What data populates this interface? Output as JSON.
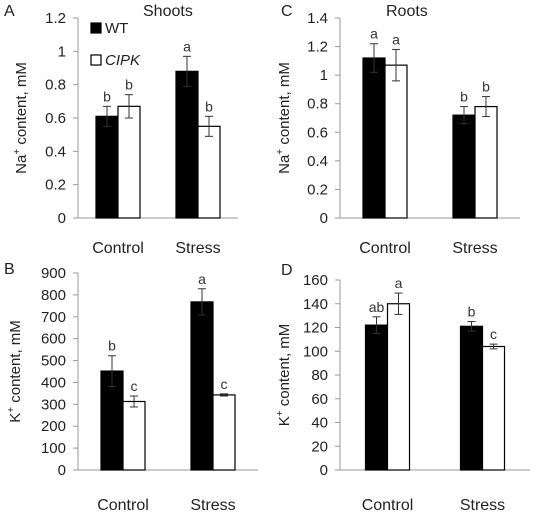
{
  "figure": {
    "legend": [
      {
        "label": "WT",
        "italic": false,
        "fill": "#000000"
      },
      {
        "label": "CIPK",
        "italic": true,
        "fill": "#ffffff"
      }
    ]
  },
  "chart_data": [
    {
      "panel": "A",
      "title": "Shoots",
      "type": "bar",
      "ylabel_main": "Na",
      "ylabel_sup": "+",
      "ylabel_rest": " content, mM",
      "categories": [
        "Control",
        "Stress"
      ],
      "ylim": [
        0,
        1.2
      ],
      "yticks": [
        "0",
        "0.2",
        "0.4",
        "0.6",
        "0.8",
        "1",
        "1.2"
      ],
      "legend_placement": "top-left",
      "series": [
        {
          "name": "WT",
          "fill": "#000000",
          "values": [
            0.61,
            0.88
          ],
          "errors": [
            0.06,
            0.09
          ],
          "letters": [
            "b",
            "a"
          ]
        },
        {
          "name": "CIPK",
          "fill": "#ffffff",
          "values": [
            0.67,
            0.55
          ],
          "errors": [
            0.07,
            0.06
          ],
          "letters": [
            "b",
            "b"
          ]
        }
      ]
    },
    {
      "panel": "C",
      "title": "Roots",
      "type": "bar",
      "ylabel_main": "Na",
      "ylabel_sup": "+",
      "ylabel_rest": " content, mM",
      "categories": [
        "Control",
        "Stress"
      ],
      "ylim": [
        0,
        1.4
      ],
      "yticks": [
        "0",
        "0.2",
        "0.4",
        "0.6",
        "0.8",
        "1",
        "1.2",
        "1.4"
      ],
      "series": [
        {
          "name": "WT",
          "fill": "#000000",
          "values": [
            1.12,
            0.72
          ],
          "errors": [
            0.1,
            0.06
          ],
          "letters": [
            "a",
            "b"
          ]
        },
        {
          "name": "CIPK",
          "fill": "#ffffff",
          "values": [
            1.07,
            0.78
          ],
          "errors": [
            0.11,
            0.07
          ],
          "letters": [
            "a",
            "b"
          ]
        }
      ]
    },
    {
      "panel": "B",
      "title": "",
      "type": "bar",
      "ylabel_main": "K",
      "ylabel_sup": "+",
      "ylabel_rest": " content, mM",
      "categories": [
        "Control",
        "Stress"
      ],
      "ylim": [
        0,
        900
      ],
      "yticks": [
        "0",
        "100",
        "200",
        "300",
        "400",
        "500",
        "600",
        "700",
        "800",
        "900"
      ],
      "series": [
        {
          "name": "WT",
          "fill": "#000000",
          "values": [
            452,
            768
          ],
          "errors": [
            70,
            60
          ],
          "letters": [
            "b",
            "a"
          ]
        },
        {
          "name": "CIPK",
          "fill": "#ffffff",
          "values": [
            313,
            343
          ],
          "errors": [
            25,
            5
          ],
          "letters": [
            "c",
            "c"
          ]
        }
      ]
    },
    {
      "panel": "D",
      "title": "",
      "type": "bar",
      "ylabel_main": "K",
      "ylabel_sup": "+",
      "ylabel_rest": " content, mM",
      "categories": [
        "Control",
        "Stress"
      ],
      "ylim": [
        0,
        160
      ],
      "yticks": [
        "0",
        "20",
        "40",
        "60",
        "80",
        "100",
        "120",
        "140",
        "160"
      ],
      "series": [
        {
          "name": "WT",
          "fill": "#000000",
          "values": [
            122,
            121
          ],
          "errors": [
            7,
            4
          ],
          "letters": [
            "ab",
            "b"
          ]
        },
        {
          "name": "CIPK",
          "fill": "#ffffff",
          "values": [
            140,
            104
          ],
          "errors": [
            9,
            2
          ],
          "letters": [
            "a",
            "c"
          ]
        }
      ]
    }
  ]
}
